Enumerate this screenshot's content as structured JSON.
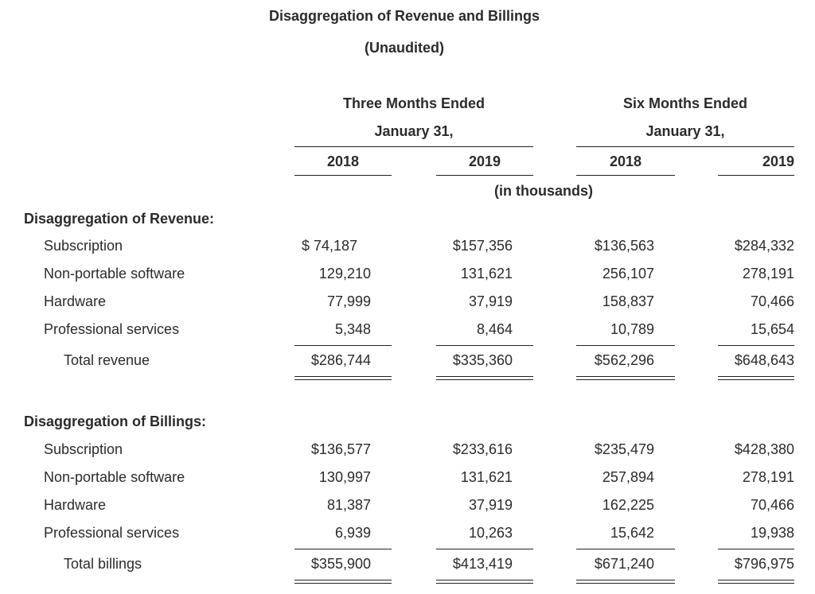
{
  "title": "Disaggregation of Revenue and Billings",
  "subtitle": "(Unaudited)",
  "period_headers": [
    {
      "line1": "Three Months Ended",
      "line2": "January 31,"
    },
    {
      "line1": "Six Months Ended",
      "line2": "January 31,"
    }
  ],
  "years": [
    "2018",
    "2019",
    "2018",
    "2019"
  ],
  "units": "(in thousands)",
  "revenue": {
    "heading": "Disaggregation of Revenue:",
    "rows": [
      {
        "label": "Subscription",
        "values": [
          "$ 74,187",
          "$157,356",
          "$136,563",
          "$284,332"
        ]
      },
      {
        "label": "Non-portable software",
        "values": [
          "129,210",
          "131,621",
          "256,107",
          "278,191"
        ]
      },
      {
        "label": "Hardware",
        "values": [
          "77,999",
          "37,919",
          "158,837",
          "70,466"
        ]
      },
      {
        "label": "Professional services",
        "values": [
          "5,348",
          "8,464",
          "10,789",
          "15,654"
        ]
      }
    ],
    "total": {
      "label": "Total revenue",
      "values": [
        "$286,744",
        "$335,360",
        "$562,296",
        "$648,643"
      ]
    }
  },
  "billings": {
    "heading": "Disaggregation of Billings:",
    "rows": [
      {
        "label": "Subscription",
        "values": [
          "$136,577",
          "$233,616",
          "$235,479",
          "$428,380"
        ]
      },
      {
        "label": "Non-portable software",
        "values": [
          "130,997",
          "131,621",
          "257,894",
          "278,191"
        ]
      },
      {
        "label": "Hardware",
        "values": [
          "81,387",
          "37,919",
          "162,225",
          "70,466"
        ]
      },
      {
        "label": "Professional services",
        "values": [
          "6,939",
          "10,263",
          "15,642",
          "19,938"
        ]
      }
    ],
    "total": {
      "label": "Total billings",
      "values": [
        "$355,900",
        "$413,419",
        "$671,240",
        "$796,975"
      ]
    }
  }
}
